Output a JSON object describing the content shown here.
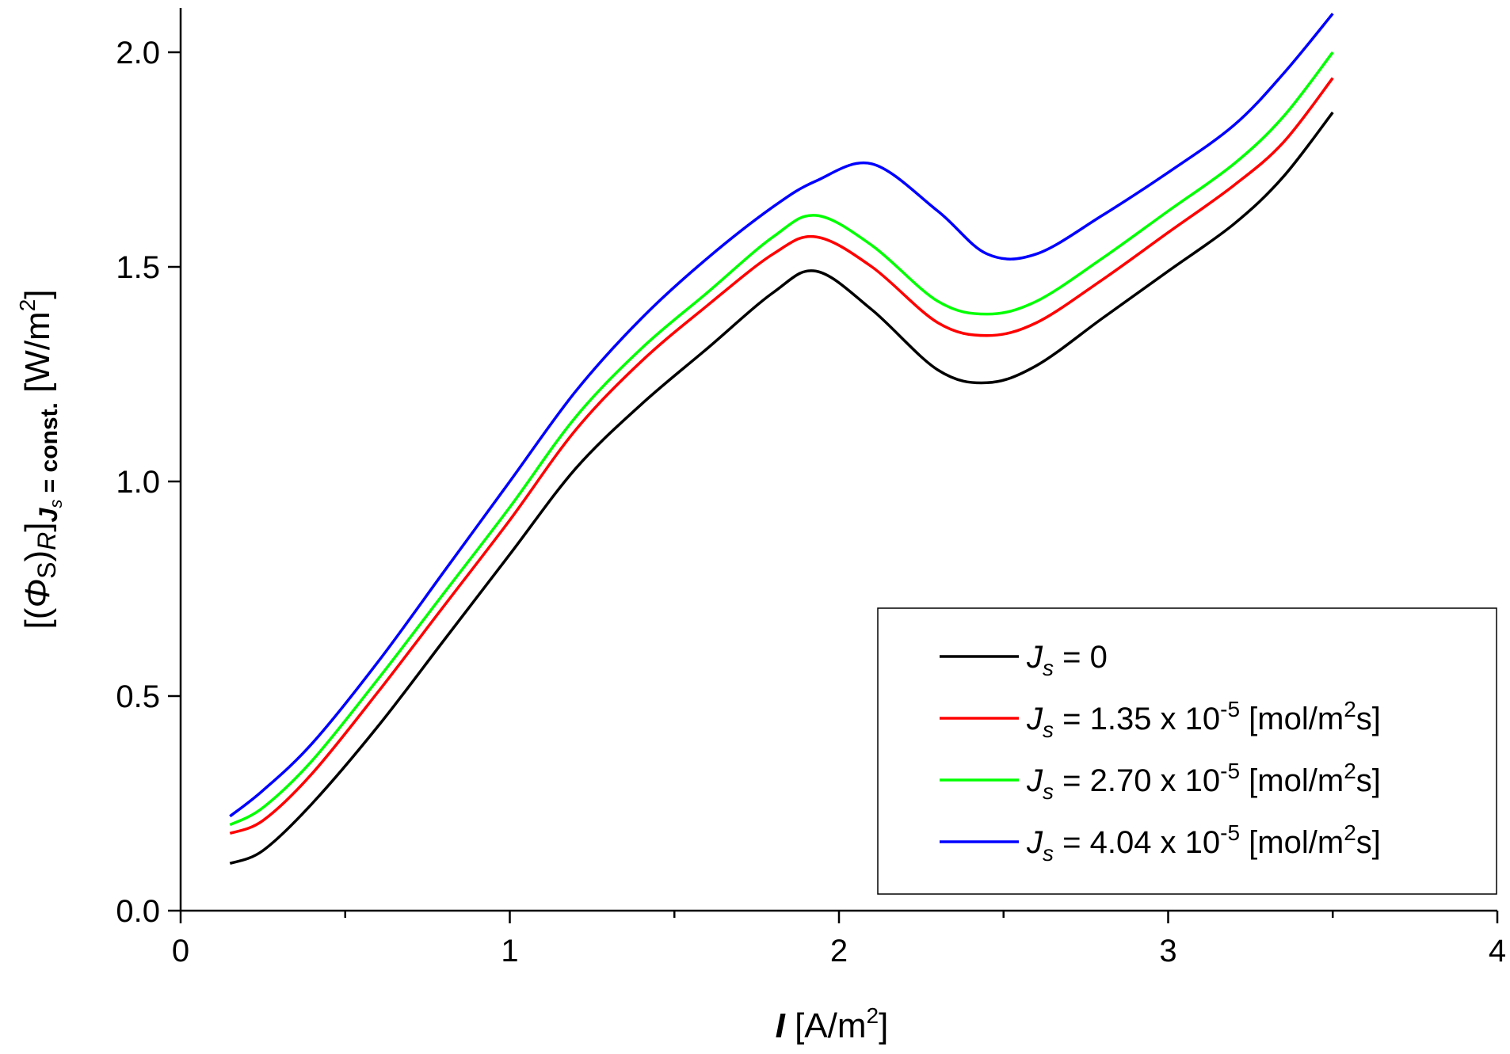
{
  "chart_data": {
    "type": "line",
    "xlabel": {
      "symbol": "I",
      "unit_pre": " [A/m",
      "unit_sup": "2",
      "unit_post": "]"
    },
    "ylabel": {
      "open": "[(",
      "phi": "Φ",
      "s_sub": "S",
      "close_paren": ")",
      "r_sub": "R",
      "close_bracket": "]",
      "js": "J",
      "js_sub": "s",
      "const": " = const.",
      "unit_pre": " [W/m",
      "unit_sup": "2",
      "unit_post": "]"
    },
    "xlim": [
      0,
      4
    ],
    "ylim": [
      0,
      2.1
    ],
    "x_major_ticks": [
      0,
      1,
      2,
      3,
      4
    ],
    "x_tick_labels": [
      "0",
      "1",
      "2",
      "3",
      "4"
    ],
    "x_minor_ticks": [
      0.5,
      1.5,
      2.5,
      3.5
    ],
    "y_ticks": [
      0,
      0.5,
      1,
      1.5,
      2
    ],
    "y_tick_labels": [
      "0.0",
      "0.5",
      "1.0",
      "1.5",
      "2.0"
    ],
    "x": [
      0.15,
      0.25,
      0.4,
      0.6,
      0.8,
      1.0,
      1.2,
      1.4,
      1.6,
      1.8,
      1.93,
      2.1,
      2.3,
      2.45,
      2.6,
      2.8,
      3.0,
      3.2,
      3.35,
      3.5
    ],
    "series": [
      {
        "name": "J_s = 0",
        "color": "#000000",
        "label": {
          "j": "J",
          "sub": "s",
          "text": " = 0",
          "sup": "",
          "post": ""
        },
        "values": [
          0.11,
          0.14,
          0.25,
          0.43,
          0.63,
          0.83,
          1.03,
          1.18,
          1.31,
          1.44,
          1.49,
          1.4,
          1.26,
          1.23,
          1.27,
          1.38,
          1.49,
          1.6,
          1.71,
          1.86
        ]
      },
      {
        "name": "J_s = 1.35 x 10^-5 [mol/m^2s]",
        "color": "#ff0000",
        "label": {
          "j": "J",
          "sub": "s",
          "text": " = 1.35 x 10",
          "sup": "-5",
          "post": " [mol/m",
          "sup2": "2",
          "post2": "s]"
        },
        "values": [
          0.18,
          0.21,
          0.32,
          0.51,
          0.71,
          0.91,
          1.12,
          1.28,
          1.41,
          1.53,
          1.57,
          1.5,
          1.37,
          1.34,
          1.37,
          1.47,
          1.58,
          1.69,
          1.79,
          1.94
        ]
      },
      {
        "name": "J_s = 2.70 x 10^-5 [mol/m^2s]",
        "color": "#00ff00",
        "label": {
          "j": "J",
          "sub": "s",
          "text": " = 2.70 x 10",
          "sup": "-5",
          "post": " [mol/m",
          "sup2": "2",
          "post2": "s]"
        },
        "values": [
          0.2,
          0.24,
          0.35,
          0.54,
          0.74,
          0.94,
          1.15,
          1.31,
          1.44,
          1.57,
          1.62,
          1.55,
          1.42,
          1.39,
          1.42,
          1.52,
          1.63,
          1.74,
          1.85,
          2.0
        ]
      },
      {
        "name": "J_s = 4.04 x 10^-5 [mol/m^2s]",
        "color": "#0000ff",
        "label": {
          "j": "J",
          "sub": "s",
          "text": " = 4.04 x 10",
          "sup": "-5",
          "post": " [mol/m",
          "sup2": "2",
          "post2": "s]"
        },
        "values": [
          0.22,
          0.28,
          0.39,
          0.58,
          0.79,
          1.0,
          1.21,
          1.38,
          1.52,
          1.64,
          1.7,
          1.74,
          1.63,
          1.53,
          1.53,
          1.62,
          1.72,
          1.83,
          1.95,
          2.09
        ]
      }
    ],
    "legend_position": "lower-right"
  }
}
